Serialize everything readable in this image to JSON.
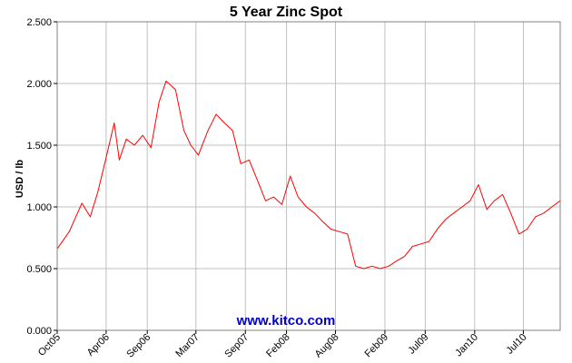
{
  "chart_data": {
    "type": "line",
    "title": "5 Year Zinc Spot",
    "xlabel": "",
    "ylabel": "USD / lb",
    "ylim": [
      0,
      2.5
    ],
    "y_ticks": [
      "0.000",
      "0.500",
      "1.000",
      "1.500",
      "2.000",
      "2.500"
    ],
    "x_ticks": [
      "Oct05",
      "Apr06",
      "Sep06",
      "Mar07",
      "Sep07",
      "Feb08",
      "Aug08",
      "Feb09",
      "Jul09",
      "Jan10",
      "Jul10"
    ],
    "x_range": [
      "2005-10-01",
      "2010-11-15"
    ],
    "grid": true,
    "legend": "none",
    "watermark": "www.kitco.com",
    "colors": {
      "line": "#ff0000",
      "grid": "#c0c0c0",
      "watermark": "#0000cc"
    },
    "series": [
      {
        "x": [
          "2005-10-01",
          "2005-11-15",
          "2006-01-01",
          "2006-02-01",
          "2006-03-01",
          "2006-04-01",
          "2006-05-01",
          "2006-05-20",
          "2006-06-15",
          "2006-07-15",
          "2006-08-15",
          "2006-09-15",
          "2006-10-15",
          "2006-11-10",
          "2006-12-15",
          "2007-01-15",
          "2007-02-10",
          "2007-03-10",
          "2007-04-15",
          "2007-05-15",
          "2007-06-15",
          "2007-07-15",
          "2007-08-15",
          "2007-09-15",
          "2007-10-15",
          "2007-11-15",
          "2007-12-15",
          "2008-01-15",
          "2008-02-15",
          "2008-03-15",
          "2008-04-15",
          "2008-05-15",
          "2008-06-15",
          "2008-07-15",
          "2008-08-15",
          "2008-09-15",
          "2008-10-15",
          "2008-11-15",
          "2008-12-15",
          "2009-01-15",
          "2009-02-15",
          "2009-03-15",
          "2009-04-15",
          "2009-05-15",
          "2009-06-15",
          "2009-07-15",
          "2009-08-15",
          "2009-09-15",
          "2009-10-15",
          "2009-11-15",
          "2009-12-15",
          "2010-01-15",
          "2010-02-15",
          "2010-03-15",
          "2010-04-15",
          "2010-05-15",
          "2010-06-15",
          "2010-07-15",
          "2010-08-15",
          "2010-09-15",
          "2010-10-15",
          "2010-11-15"
        ],
        "values": [
          0.66,
          0.8,
          1.03,
          0.92,
          1.12,
          1.4,
          1.68,
          1.38,
          1.55,
          1.5,
          1.58,
          1.48,
          1.85,
          2.02,
          1.95,
          1.62,
          1.5,
          1.42,
          1.62,
          1.75,
          1.68,
          1.62,
          1.35,
          1.38,
          1.22,
          1.05,
          1.08,
          1.02,
          1.25,
          1.08,
          1.0,
          0.95,
          0.88,
          0.82,
          0.8,
          0.78,
          0.52,
          0.5,
          0.52,
          0.5,
          0.52,
          0.56,
          0.6,
          0.68,
          0.7,
          0.72,
          0.82,
          0.9,
          0.95,
          1.0,
          1.05,
          1.18,
          0.98,
          1.05,
          1.1,
          0.95,
          0.78,
          0.82,
          0.92,
          0.95,
          1.0,
          1.05
        ]
      }
    ]
  }
}
